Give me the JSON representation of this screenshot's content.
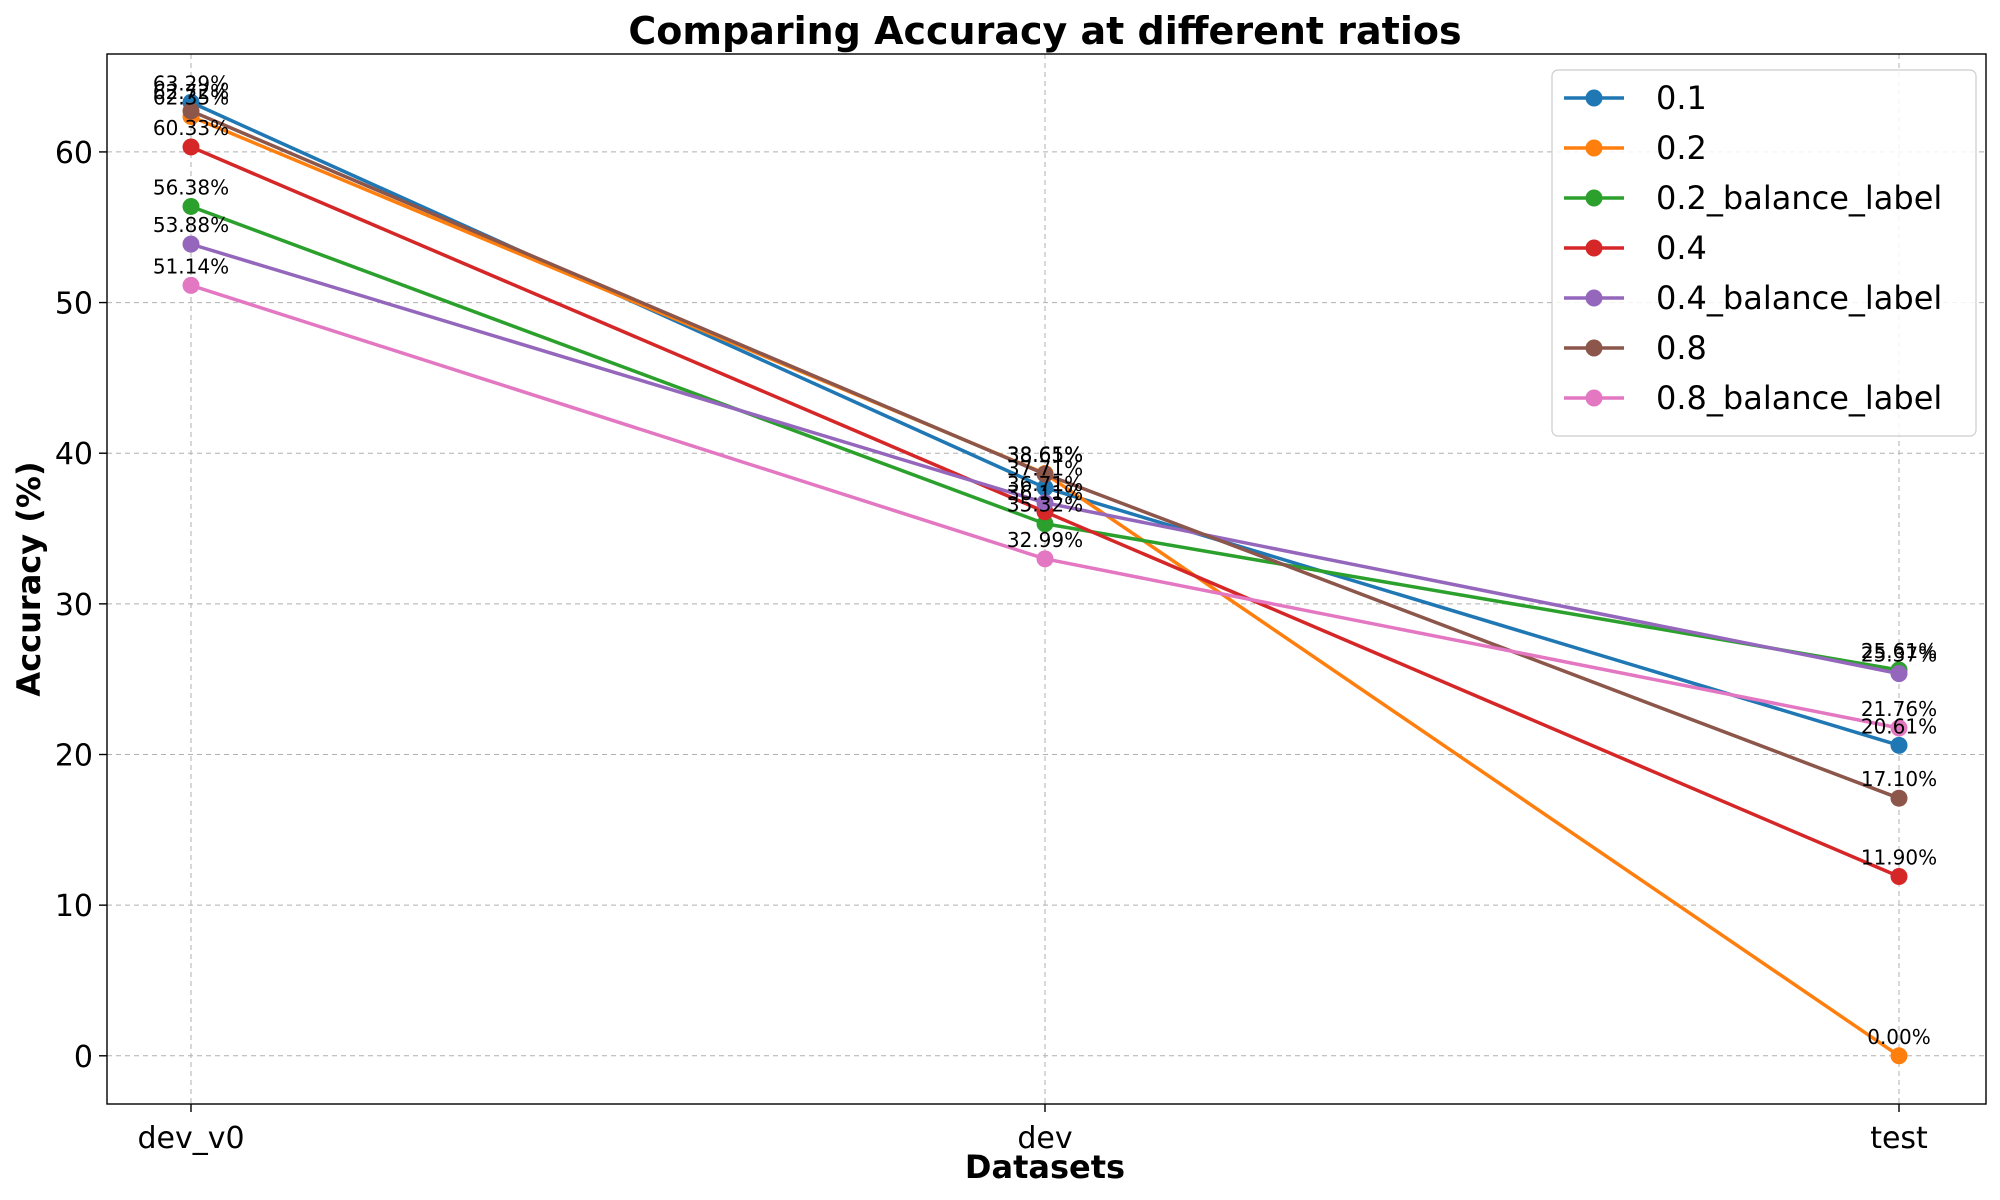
{
  "chart_data": {
    "type": "line",
    "title": "Comparing Accuracy at different ratios",
    "xlabel": "Datasets",
    "ylabel": "Accuracy (%)",
    "categories": [
      "dev_v0",
      "dev",
      "test"
    ],
    "ylim": [
      -3.2,
      66.5
    ],
    "yticks": [
      0,
      10,
      20,
      30,
      40,
      50,
      60
    ],
    "grid": true,
    "legend_position": "top-right",
    "series": [
      {
        "name": "0.1",
        "color": "#1f77b4",
        "values": [
          63.29,
          37.71,
          20.61
        ],
        "labels": [
          "63.29%",
          "37.71%",
          "20.61%"
        ]
      },
      {
        "name": "0.2",
        "color": "#ff7f0e",
        "values": [
          62.35,
          38.65,
          0.0
        ],
        "labels": [
          "62.35%",
          "38.65%",
          "0.00%"
        ]
      },
      {
        "name": "0.2_balance_label",
        "color": "#2ca02c",
        "values": [
          56.38,
          35.32,
          25.61
        ],
        "labels": [
          "56.38%",
          "35.32%",
          "25.61%"
        ]
      },
      {
        "name": "0.4",
        "color": "#d62728",
        "values": [
          60.33,
          36.11,
          11.9
        ],
        "labels": [
          "60.33%",
          "36.11%",
          "11.90%"
        ]
      },
      {
        "name": "0.4_balance_label",
        "color": "#9467bd",
        "values": [
          53.88,
          36.71,
          25.37
        ],
        "labels": [
          "53.88%",
          "36.71%",
          "25.37%"
        ]
      },
      {
        "name": "0.8",
        "color": "#8c564b",
        "values": [
          62.72,
          38.61,
          17.1
        ],
        "labels": [
          "62.72%",
          "38.61%",
          "17.10%"
        ]
      },
      {
        "name": "0.8_balance_label",
        "color": "#e377c2",
        "values": [
          51.14,
          32.99,
          21.76
        ],
        "labels": [
          "51.14%",
          "32.99%",
          "21.76%"
        ]
      }
    ]
  }
}
